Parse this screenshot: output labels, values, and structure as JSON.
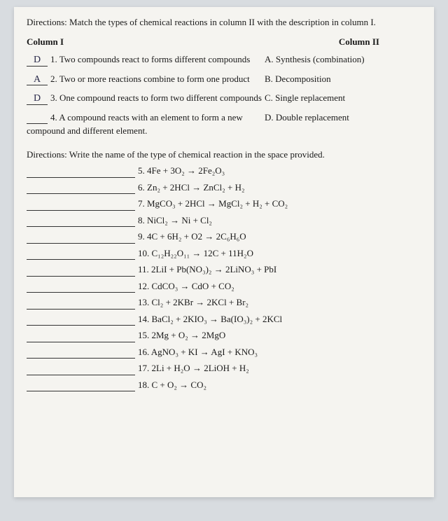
{
  "directions1": "Directions: Match the types of chemical reactions in column II with the description in column I.",
  "colHeaders": {
    "c1": "Column I",
    "c2": "Column II"
  },
  "match": [
    {
      "ans": "D",
      "num": "1.",
      "desc": "Two compounds react to forms different compounds",
      "opt": "A. Synthesis (combination)"
    },
    {
      "ans": "A",
      "num": "2.",
      "desc": "Two or more reactions combine to form one product",
      "opt": "B. Decomposition"
    },
    {
      "ans": "D",
      "num": "3.",
      "desc": "One compound reacts to form two different compounds",
      "opt": "C. Single replacement"
    },
    {
      "ans": "",
      "num": "4.",
      "desc": "A compound reacts with an element to form a new compound and different element.",
      "opt": "D. Double replacement"
    }
  ],
  "directions2": "Directions: Write the name of the type of chemical reaction in the space provided.",
  "reactions": [
    {
      "n": "5.",
      "eq": "4Fe + 3O₂ → 2Fe₂O₃"
    },
    {
      "n": "6.",
      "eq": "Zn₂ + 2HCl → ZnCl₂ + H₂"
    },
    {
      "n": "7.",
      "eq": "MgCO₃ + 2HCl → MgCl₂ + H₂ + CO₂"
    },
    {
      "n": "8.",
      "eq": "NiCl₂ → Ni + Cl₂"
    },
    {
      "n": "9.",
      "eq": "4C + 6H₂ + O2 → 2C₆H₆O"
    },
    {
      "n": "10.",
      "eq": "C₁₂H₂₂O₁₁ → 12C + 11H₂O"
    },
    {
      "n": "11.",
      "eq": "2LiI + Pb(NO₃)₂ → 2LiNO₃ + PbI"
    },
    {
      "n": "12.",
      "eq": "CdCO₃ → CdO + CO₂"
    },
    {
      "n": "13.",
      "eq": "Cl₂ + 2KBr → 2KCl + Br₂"
    },
    {
      "n": "14.",
      "eq": "BaCl₂ + 2KIO₃ → Ba(IO₃)₂ + 2KCl"
    },
    {
      "n": "15.",
      "eq": "2Mg + O₂ → 2MgO"
    },
    {
      "n": "16.",
      "eq": "AgNO₃ + KI → AgI + KNO₃"
    },
    {
      "n": "17.",
      "eq": "2Li + H₂O → 2LiOH + H₂"
    },
    {
      "n": "18.",
      "eq": "C + O₂ → CO₂"
    }
  ]
}
